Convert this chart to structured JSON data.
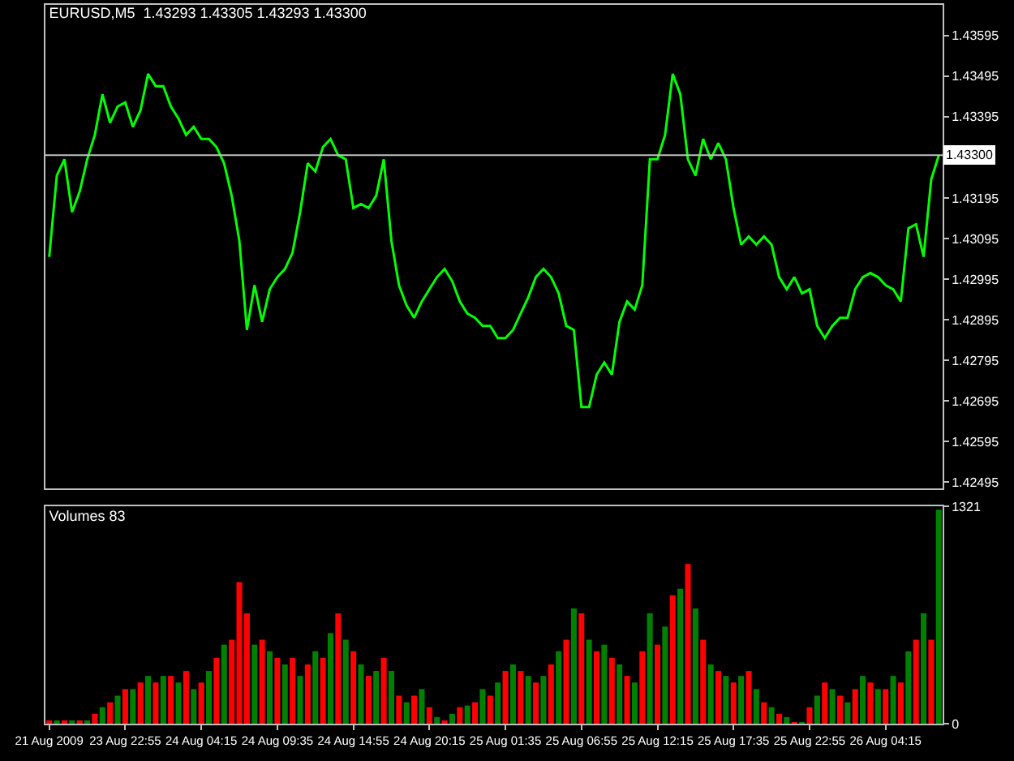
{
  "chart_data": [
    {
      "type": "line",
      "title": "EURUSD,M5  1.43293 1.43305 1.43293 1.43300",
      "color": "#00ff00",
      "tick_labels": "y",
      "categories": [
        null,
        null,
        null,
        null,
        null,
        null,
        null,
        null,
        null,
        null,
        null,
        null,
        null,
        null,
        null,
        null,
        null,
        null,
        null,
        null,
        null,
        null,
        null,
        null,
        null,
        null,
        null,
        null,
        null,
        null,
        null,
        null,
        null,
        null,
        null,
        null,
        null,
        null,
        null,
        null,
        null,
        null,
        null,
        null,
        null,
        null,
        null,
        null,
        null,
        null,
        null,
        null,
        null,
        null,
        null,
        null,
        null,
        null,
        null,
        null,
        null,
        null,
        null,
        null,
        null,
        null,
        null,
        null,
        null,
        null,
        null,
        null,
        null,
        null,
        null,
        null,
        null,
        null,
        null,
        null,
        null,
        null,
        null,
        null,
        null,
        null,
        null,
        null,
        null,
        null,
        null,
        null,
        null,
        null,
        null,
        null,
        null,
        null,
        null,
        null,
        null,
        null,
        null,
        null,
        null,
        null,
        null,
        null,
        null,
        null,
        null,
        null,
        null,
        null,
        null,
        null,
        null,
        null
      ],
      "values": [
        1.4305,
        1.4325,
        1.4329,
        1.4316,
        1.4321,
        1.4329,
        1.4335,
        1.4345,
        1.4338,
        1.4342,
        1.4343,
        1.4337,
        1.4341,
        1.435,
        1.4347,
        1.4347,
        1.4342,
        1.4339,
        1.4335,
        1.4337,
        1.4334,
        1.4334,
        1.4332,
        1.4328,
        1.432,
        1.4309,
        1.4287,
        1.4298,
        1.4289,
        1.4297,
        1.43,
        1.4302,
        1.4306,
        1.4316,
        1.4328,
        1.4326,
        1.4332,
        1.4334,
        1.433,
        1.4329,
        1.4317,
        1.4318,
        1.4317,
        1.432,
        1.4329,
        1.4309,
        1.4298,
        1.4293,
        1.429,
        1.4294,
        1.4297,
        1.43,
        1.4302,
        1.4299,
        1.4294,
        1.4291,
        1.429,
        1.4288,
        1.4288,
        1.4285,
        1.4285,
        1.4287,
        1.4291,
        1.4295,
        1.43,
        1.4302,
        1.43,
        1.4296,
        1.4288,
        1.4287,
        1.4268,
        1.4268,
        1.4276,
        1.4279,
        1.4276,
        1.4289,
        1.4294,
        1.4292,
        1.4298,
        1.4329,
        1.4329,
        1.4335,
        1.435,
        1.4345,
        1.4329,
        1.4325,
        1.4334,
        1.4329,
        1.4333,
        1.4329,
        1.4317,
        1.4308,
        1.431,
        1.4308,
        1.431,
        1.4308,
        1.43,
        1.4297,
        1.43,
        1.4296,
        1.4297,
        1.4288,
        1.4285,
        1.4288,
        1.429,
        1.429,
        1.4297,
        1.43,
        1.4301,
        1.43,
        1.4298,
        1.4297,
        1.4294,
        1.4312,
        1.4313,
        1.4305,
        1.4324,
        1.433
      ],
      "ylim": [
        1.4248,
        1.4367
      ],
      "yticks": [
        1.42495,
        1.42595,
        1.42695,
        1.42795,
        1.42895,
        1.42995,
        1.43095,
        1.43195,
        1.43395,
        1.43495,
        1.43595
      ],
      "ref_lines": [
        {
          "axis": "y",
          "value": 1.433,
          "label": "1.43300",
          "color": "#c0c0c0"
        }
      ]
    },
    {
      "type": "bar",
      "title": "Volumes 83",
      "categories": [
        "21 Aug 2009",
        null,
        null,
        null,
        null,
        null,
        null,
        null,
        null,
        null,
        "23 Aug 22:55",
        null,
        null,
        null,
        null,
        null,
        null,
        null,
        null,
        null,
        "24 Aug 04:15",
        null,
        null,
        null,
        null,
        null,
        null,
        null,
        null,
        null,
        "24 Aug 09:35",
        null,
        null,
        null,
        null,
        null,
        null,
        null,
        null,
        null,
        "24 Aug 14:55",
        null,
        null,
        null,
        null,
        null,
        null,
        null,
        null,
        null,
        "24 Aug 20:15",
        null,
        null,
        null,
        null,
        null,
        null,
        null,
        null,
        null,
        "25 Aug 01:35",
        null,
        null,
        null,
        null,
        null,
        null,
        null,
        null,
        null,
        "25 Aug 06:55",
        null,
        null,
        null,
        null,
        null,
        null,
        null,
        null,
        null,
        "25 Aug 12:15",
        null,
        null,
        null,
        null,
        null,
        null,
        null,
        null,
        null,
        "25 Aug 17:35",
        null,
        null,
        null,
        null,
        null,
        null,
        null,
        null,
        null,
        "25 Aug 22:55",
        null,
        null,
        null,
        null,
        null,
        null,
        null,
        null,
        null,
        "26 Aug 04:15",
        null,
        null,
        null,
        null,
        null,
        null,
        null
      ],
      "values": [
        20,
        20,
        20,
        20,
        20,
        20,
        60,
        100,
        130,
        170,
        210,
        210,
        250,
        290,
        250,
        290,
        290,
        250,
        320,
        210,
        250,
        320,
        400,
        480,
        510,
        860,
        670,
        480,
        510,
        440,
        400,
        360,
        400,
        290,
        360,
        440,
        400,
        550,
        670,
        510,
        440,
        360,
        290,
        320,
        400,
        320,
        170,
        130,
        170,
        210,
        100,
        40,
        20,
        60,
        100,
        110,
        130,
        210,
        170,
        250,
        320,
        360,
        320,
        290,
        250,
        290,
        360,
        440,
        510,
        700,
        670,
        510,
        440,
        480,
        400,
        360,
        290,
        250,
        440,
        670,
        480,
        590,
        780,
        820,
        970,
        700,
        510,
        360,
        320,
        290,
        250,
        290,
        320,
        210,
        130,
        100,
        60,
        40,
        10,
        10,
        100,
        170,
        250,
        210,
        170,
        130,
        210,
        290,
        250,
        210,
        210,
        290,
        250,
        440,
        510,
        670,
        510,
        1300
      ],
      "colors": [
        "#ff0000",
        "#008000",
        "#ff0000",
        "#008000",
        "#ff0000",
        "#008000",
        "#ff0000",
        "#008000",
        "#ff0000",
        "#008000",
        "#ff0000",
        "#008000",
        "#ff0000",
        "#008000",
        "#ff0000",
        "#008000",
        "#ff0000",
        "#008000",
        "#ff0000",
        "#008000",
        "#ff0000",
        "#008000",
        "#ff0000",
        "#008000",
        "#ff0000",
        "#ff0000",
        "#ff0000",
        "#008000",
        "#ff0000",
        "#008000",
        "#ff0000",
        "#008000",
        "#ff0000",
        "#008000",
        "#ff0000",
        "#008000",
        "#ff0000",
        "#008000",
        "#ff0000",
        "#008000",
        "#ff0000",
        "#008000",
        "#ff0000",
        "#008000",
        "#ff0000",
        "#008000",
        "#ff0000",
        "#008000",
        "#ff0000",
        "#008000",
        "#ff0000",
        "#008000",
        "#ff0000",
        "#008000",
        "#ff0000",
        "#008000",
        "#ff0000",
        "#008000",
        "#ff0000",
        "#008000",
        "#ff0000",
        "#008000",
        "#ff0000",
        "#008000",
        "#ff0000",
        "#008000",
        "#ff0000",
        "#008000",
        "#ff0000",
        "#008000",
        "#ff0000",
        "#008000",
        "#ff0000",
        "#008000",
        "#ff0000",
        "#008000",
        "#ff0000",
        "#008000",
        "#ff0000",
        "#008000",
        "#ff0000",
        "#008000",
        "#ff0000",
        "#008000",
        "#ff0000",
        "#008000",
        "#ff0000",
        "#008000",
        "#ff0000",
        "#008000",
        "#ff0000",
        "#008000",
        "#ff0000",
        "#008000",
        "#ff0000",
        "#008000",
        "#ff0000",
        "#008000",
        "#ff0000",
        "#008000",
        "#ff0000",
        "#008000",
        "#ff0000",
        "#008000",
        "#ff0000",
        "#008000",
        "#ff0000",
        "#008000",
        "#ff0000",
        "#008000",
        "#ff0000",
        "#008000",
        "#ff0000",
        "#008000",
        "#ff0000",
        "#008000",
        "#ff0000",
        "#008000"
      ],
      "ylim": [
        0,
        1321
      ],
      "yticks": [
        0,
        1321
      ]
    }
  ]
}
